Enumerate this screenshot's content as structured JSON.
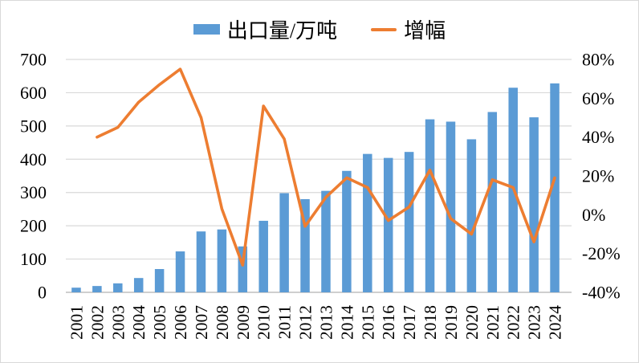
{
  "legend": {
    "bar_label": "出口量/万吨",
    "line_label": "增幅"
  },
  "colors": {
    "bar": "#5B9BD5",
    "line": "#ED7D31",
    "gridline": "#D9D9D9",
    "axis_line": "#BFBFBF",
    "text": "#000000",
    "background": "#FFFFFF",
    "border": "#D9D9D9"
  },
  "chart_data": {
    "type": "combo",
    "title": "",
    "xlabel": "",
    "ylabel_left": "出口量/万吨",
    "ylabel_right": "增幅",
    "grid": true,
    "legend_position": "top",
    "categories": [
      "2001",
      "2002",
      "2003",
      "2004",
      "2005",
      "2006",
      "2007",
      "2008",
      "2009",
      "2010",
      "2011",
      "2012",
      "2013",
      "2014",
      "2015",
      "2016",
      "2017",
      "2018",
      "2019",
      "2020",
      "2021",
      "2022",
      "2023",
      "2024"
    ],
    "series": [
      {
        "name": "出口量/万吨",
        "type": "bar",
        "axis": "left",
        "values": [
          14,
          19,
          27,
          43,
          70,
          123,
          183,
          189,
          138,
          215,
          298,
          280,
          305,
          365,
          416,
          404,
          422,
          520,
          513,
          460,
          542,
          615,
          526,
          628
        ]
      },
      {
        "name": "增幅",
        "type": "line",
        "axis": "right",
        "unit": "percent",
        "values": [
          null,
          40,
          45,
          58,
          67,
          75,
          50,
          3,
          -26,
          56,
          39,
          -6,
          9,
          19,
          14,
          -3,
          4,
          23,
          -2,
          -10,
          18,
          14,
          -14,
          19
        ]
      }
    ],
    "left_axis": {
      "min": 0,
      "max": 700,
      "step": 100,
      "ticks": [
        "0",
        "100",
        "200",
        "300",
        "400",
        "500",
        "600",
        "700"
      ]
    },
    "right_axis": {
      "min": -40,
      "max": 80,
      "step": 20,
      "ticks": [
        "-40%",
        "-20%",
        "0%",
        "20%",
        "40%",
        "60%",
        "80%"
      ]
    }
  }
}
